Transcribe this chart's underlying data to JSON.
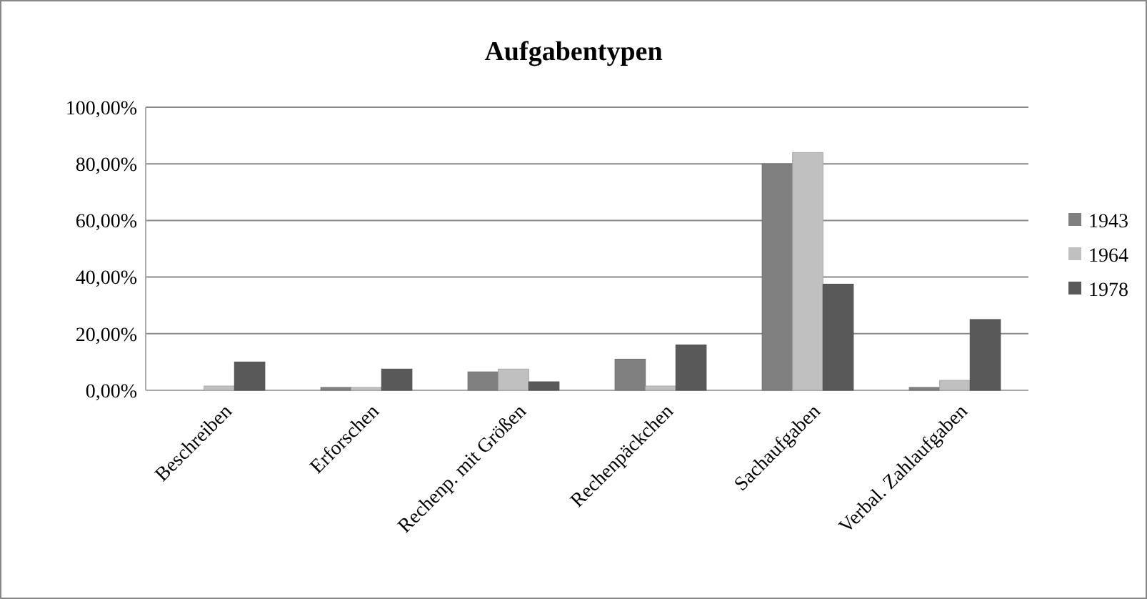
{
  "chart_data": {
    "type": "bar",
    "title": "Aufgabentypen",
    "categories": [
      "Beschreiben",
      "Erforschen",
      "Rechenp. mit Größen",
      "Rechenpäckchen",
      "Sachaufgaben",
      "Verbal. Zahlaufgaben"
    ],
    "series": [
      {
        "name": "1943",
        "color": "#808080",
        "values": [
          0,
          1,
          6.5,
          11,
          80,
          1
        ]
      },
      {
        "name": "1964",
        "color": "#c0c0c0",
        "values": [
          1.5,
          1,
          7.5,
          1.5,
          84,
          3.5
        ]
      },
      {
        "name": "1978",
        "color": "#595959",
        "values": [
          10,
          7.5,
          3,
          16,
          37.5,
          25
        ]
      }
    ],
    "ylim": [
      0,
      100
    ],
    "yticks": [
      {
        "value": 0,
        "label": "0,00%"
      },
      {
        "value": 20,
        "label": "20,00%"
      },
      {
        "value": 40,
        "label": "40,00%"
      },
      {
        "value": 60,
        "label": "60,00%"
      },
      {
        "value": 80,
        "label": "80,00%"
      },
      {
        "value": 100,
        "label": "100,00%"
      }
    ],
    "grid": "y",
    "legend": "right"
  }
}
